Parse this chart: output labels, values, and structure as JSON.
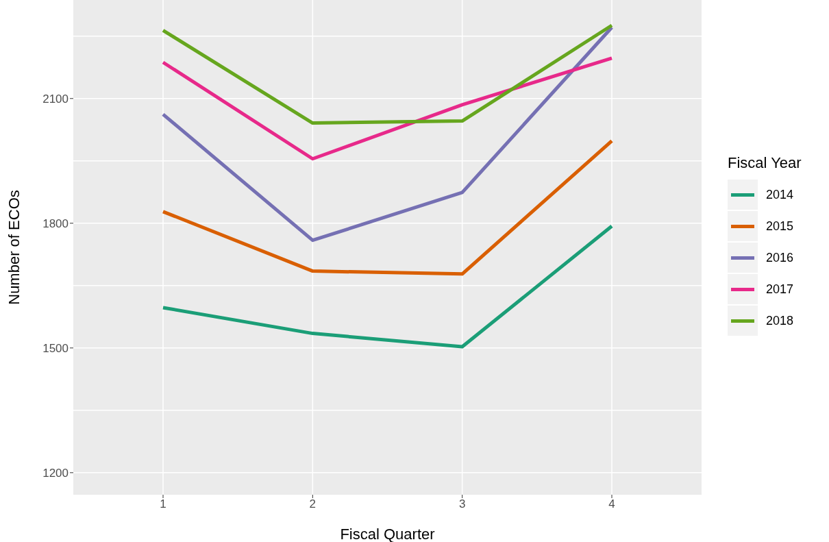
{
  "chart_data": {
    "type": "line",
    "xlabel": "Fiscal Quarter",
    "ylabel": "Number of ECOs",
    "legend_title": "Fiscal Year",
    "x": [
      1,
      2,
      3,
      4
    ],
    "xlim": [
      0.4,
      4.6
    ],
    "xticks": [
      1,
      2,
      3,
      4
    ],
    "ylim": [
      1147,
      2337
    ],
    "yticks": [
      1200,
      1500,
      1800,
      2100
    ],
    "grid": true,
    "legend": "right",
    "marker": "none",
    "line_style": "solid",
    "series": [
      {
        "name": "2014",
        "color": "#1b9e77",
        "values": [
          1597,
          1535,
          1503,
          1793
        ]
      },
      {
        "name": "2015",
        "color": "#d95f02",
        "values": [
          1828,
          1685,
          1678,
          1998
        ]
      },
      {
        "name": "2016",
        "color": "#7570b3",
        "values": [
          2062,
          1759,
          1874,
          2271
        ]
      },
      {
        "name": "2017",
        "color": "#e7298a",
        "values": [
          2187,
          1955,
          2085,
          2197
        ]
      },
      {
        "name": "2018",
        "color": "#66a61e",
        "values": [
          2264,
          2041,
          2046,
          2276
        ]
      }
    ]
  }
}
